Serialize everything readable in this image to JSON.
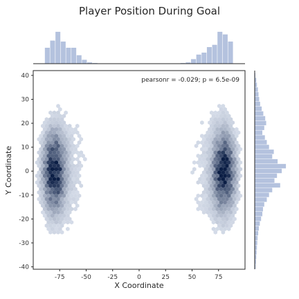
{
  "chart_data": {
    "type": "jointplot-hexbin",
    "title": "Player Position During Goal",
    "xlabel": "X Coordinate",
    "ylabel": "Y Coordinate",
    "annotation": "pearsonr = -0.029; p = 6.5e-09",
    "xlim": [
      -100,
      100
    ],
    "ylim": [
      -41,
      42
    ],
    "xticks": [
      -75,
      -50,
      -25,
      0,
      25,
      50,
      75
    ],
    "yticks": [
      -40,
      -30,
      -20,
      -10,
      0,
      10,
      20,
      30,
      40
    ],
    "grid": false,
    "colors": {
      "hist": "#b4c2de",
      "hex_dark": "#0b1e45",
      "axis": "#262626"
    },
    "marginal_x": {
      "bin_edges": [
        -89,
        -84,
        -79,
        -74,
        -69,
        -64,
        -59,
        -54,
        -49,
        -44,
        -39,
        -34,
        34,
        39,
        44,
        49,
        54,
        59,
        64,
        69,
        74,
        79,
        84,
        89
      ],
      "counts": [
        0.49,
        0.71,
        0.98,
        0.68,
        0.49,
        0.49,
        0.26,
        0.12,
        0.04,
        0.02,
        0.01,
        0,
        0.01,
        0.02,
        0.04,
        0.14,
        0.28,
        0.34,
        0.51,
        0.58,
        0.98,
        0.9,
        0.68
      ]
    },
    "marginal_y": {
      "bin_centers": [
        40,
        38,
        36,
        34,
        32,
        30,
        28,
        26,
        24,
        22,
        20,
        18,
        16,
        14,
        12,
        10,
        8,
        6,
        4,
        2,
        0,
        -2,
        -4,
        -6,
        -8,
        -10,
        -12,
        -14,
        -16,
        -18,
        -20,
        -22,
        -24,
        -26,
        -28,
        -30,
        -32,
        -34,
        -36,
        -38,
        -40
      ],
      "counts": [
        0.02,
        0.05,
        0.07,
        0.1,
        0.12,
        0.14,
        0.17,
        0.22,
        0.27,
        0.33,
        0.36,
        0.3,
        0.24,
        0.32,
        0.38,
        0.45,
        0.6,
        0.55,
        0.72,
        0.98,
        0.85,
        0.7,
        0.62,
        0.8,
        0.55,
        0.45,
        0.38,
        0.3,
        0.26,
        0.24,
        0.2,
        0.16,
        0.13,
        0.11,
        0.09,
        0.08,
        0.07,
        0.06,
        0.05,
        0.04,
        0.03
      ]
    },
    "hexbin_clusters": [
      {
        "center_x": -80,
        "center_y": 0,
        "spread_x": 6,
        "spread_y": 9,
        "peak": 1.0
      },
      {
        "center_x": 80,
        "center_y": 0,
        "spread_x": 6,
        "spread_y": 9,
        "peak": 1.0
      }
    ]
  }
}
